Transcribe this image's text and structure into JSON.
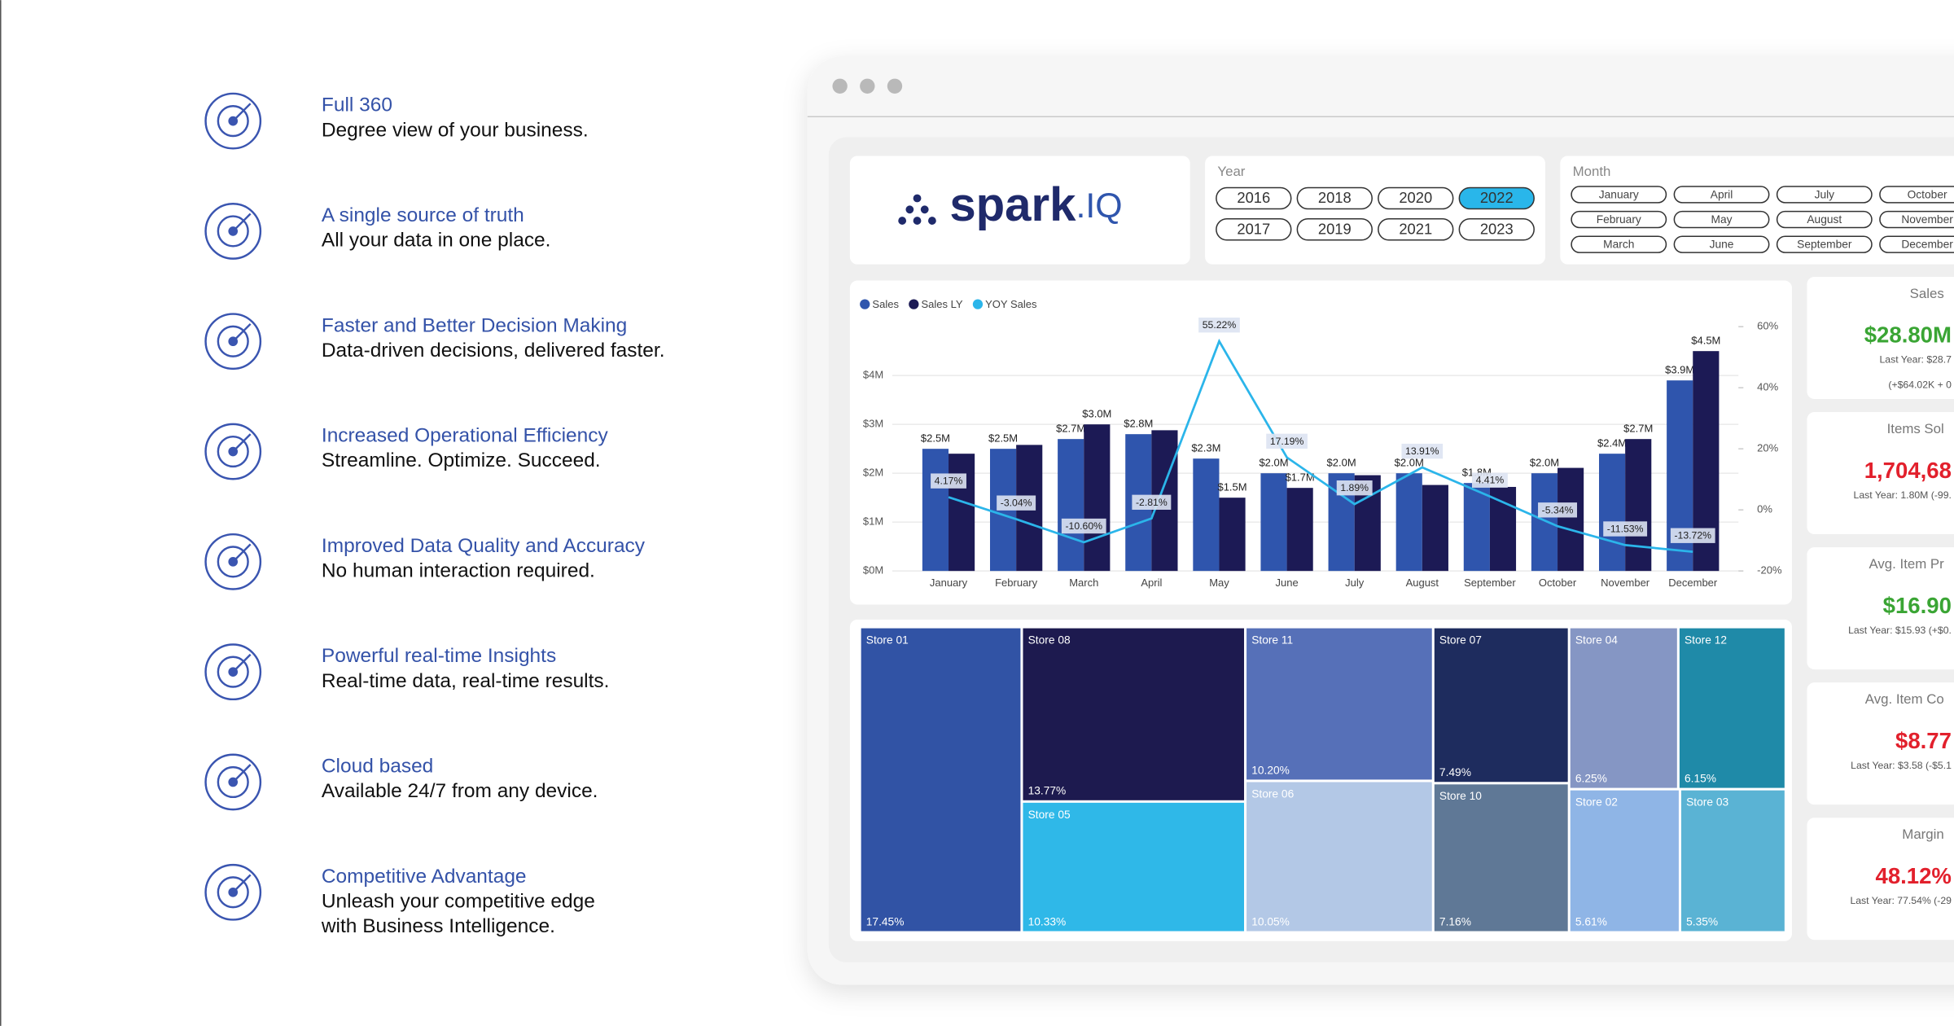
{
  "features": [
    {
      "title": "Full 360",
      "lines": [
        "Degree view of your business."
      ]
    },
    {
      "title": "A single source of truth",
      "lines": [
        "All your data in one place."
      ]
    },
    {
      "title": "Faster and Better Decision Making",
      "lines": [
        "Data-driven decisions, delivered faster."
      ]
    },
    {
      "title": "Increased Operational Efficiency",
      "lines": [
        "Streamline. Optimize. Succeed."
      ]
    },
    {
      "title": "Improved Data Quality and Accuracy",
      "lines": [
        "No human interaction required."
      ]
    },
    {
      "title": "Powerful real-time Insights",
      "lines": [
        "Real-time data, real-time results."
      ]
    },
    {
      "title": "Cloud based",
      "lines": [
        "Available 24/7 from any device."
      ]
    },
    {
      "title": "Competitive Advantage",
      "lines": [
        "Unleash your competitive edge",
        "with Business Intelligence."
      ]
    }
  ],
  "dashboard": {
    "logo": {
      "word": "spark",
      "suffix": ".IQ"
    },
    "year_slicer": {
      "label": "Year",
      "options": [
        "2016",
        "2017",
        "2018",
        "2019",
        "2020",
        "2021",
        "2022",
        "2023"
      ],
      "selected": "2022"
    },
    "month_slicer": {
      "label": "Month",
      "options": [
        "January",
        "February",
        "March",
        "April",
        "May",
        "June",
        "July",
        "August",
        "September",
        "October",
        "November",
        "December"
      ]
    },
    "kpis": [
      {
        "title": "Sales",
        "value": "$28.80M",
        "value_color": "#3aa534",
        "lines": [
          "Last Year: $28.7",
          "(+$64.02K + 0"
        ]
      },
      {
        "title": "Items Sol",
        "value": "1,704,68",
        "value_color": "#e2202c",
        "lines": [
          "Last Year: 1.80M (-99."
        ]
      },
      {
        "title": "Avg. Item Pr",
        "value": "$16.90",
        "value_color": "#3aa534",
        "lines": [
          "Last Year: $15.93 (+$0."
        ]
      },
      {
        "title": "Avg. Item Co",
        "value": "$8.77",
        "value_color": "#e2202c",
        "lines": [
          "Last Year: $3.58 (-$5.1"
        ]
      },
      {
        "title": "Margin",
        "value": "48.12%",
        "value_color": "#e2202c",
        "lines": [
          "Last Year: 77.54% (-29"
        ]
      }
    ]
  },
  "chart_data": [
    {
      "type": "bar",
      "categories": [
        "January",
        "February",
        "March",
        "April",
        "May",
        "June",
        "July",
        "August",
        "September",
        "October",
        "November",
        "December"
      ],
      "series": [
        {
          "name": "Sales",
          "color": "#2f55ad",
          "values": [
            2.5,
            2.5,
            2.7,
            2.8,
            2.3,
            2.0,
            2.0,
            2.0,
            1.8,
            2.0,
            2.4,
            3.9
          ],
          "value_labels": [
            "$2.5M",
            "$2.5M",
            "$2.7M",
            "$2.8M",
            "$2.3M",
            "$2.0M",
            "$2.0M",
            "$2.0M",
            "$1.8M",
            "$2.0M",
            "$2.4M",
            "$3.9M"
          ]
        },
        {
          "name": "Sales LY",
          "color": "#1c1a55",
          "values": [
            2.4,
            2.58,
            3.0,
            2.88,
            1.5,
            1.7,
            1.96,
            1.76,
            1.72,
            2.11,
            2.7,
            4.5
          ],
          "value_labels": [
            null,
            null,
            "$3.0M",
            null,
            "$1.5M",
            "$1.7M",
            null,
            null,
            null,
            null,
            "$2.7M",
            "$4.5M"
          ]
        },
        {
          "name": "YOY Sales",
          "color": "#2bb5ea",
          "type": "line",
          "axis": "y2",
          "values": [
            4.17,
            -3.04,
            -10.6,
            -2.81,
            55.22,
            17.19,
            1.89,
            13.91,
            4.41,
            -5.34,
            -11.53,
            -13.72
          ],
          "value_labels": [
            "4.17%",
            "-3.04%",
            "-10.60%",
            "-2.81%",
            "55.22%",
            "17.19%",
            "1.89%",
            "13.91%",
            "4.41%",
            "-5.34%",
            "-11.53%",
            "-13.72%"
          ]
        }
      ],
      "ylim": [
        0,
        5
      ],
      "yticks": [
        {
          "value": 0,
          "label": "$0M"
        },
        {
          "value": 1,
          "label": "$1M"
        },
        {
          "value": 2,
          "label": "$2M"
        },
        {
          "value": 3,
          "label": "$3M"
        },
        {
          "value": 4,
          "label": "$4M"
        }
      ],
      "y2lim": [
        -20,
        60
      ],
      "y2ticks": [
        {
          "value": -20,
          "label": "-20%"
        },
        {
          "value": 0,
          "label": "0%"
        },
        {
          "value": 20,
          "label": "20%"
        },
        {
          "value": 40,
          "label": "40%"
        },
        {
          "value": 60,
          "label": "60%"
        }
      ],
      "grid": true,
      "legend": "top-left"
    },
    {
      "type": "treemap",
      "categories": [
        "Store 01",
        "Store 08",
        "Store 05",
        "Store 11",
        "Store 06",
        "Store 07",
        "Store 10",
        "Store 04",
        "Store 12",
        "Store 02",
        "Store 03"
      ],
      "values": [
        17.45,
        13.77,
        10.33,
        10.2,
        10.05,
        7.49,
        7.16,
        6.25,
        6.15,
        5.61,
        5.35
      ],
      "value_labels": [
        "17.45%",
        "13.77%",
        "10.33%",
        "10.20%",
        "10.05%",
        "7.49%",
        "7.16%",
        "6.25%",
        "6.15%",
        "5.61%",
        "5.35%"
      ],
      "colors": [
        "#3153a5",
        "#1d1a4f",
        "#2fb8e8",
        "#5670b8",
        "#b3c8e6",
        "#1e2c5e",
        "#5f7896",
        "#8596c4",
        "#1f8aa8",
        "#8fb5e6",
        "#5ab3d4"
      ]
    }
  ]
}
